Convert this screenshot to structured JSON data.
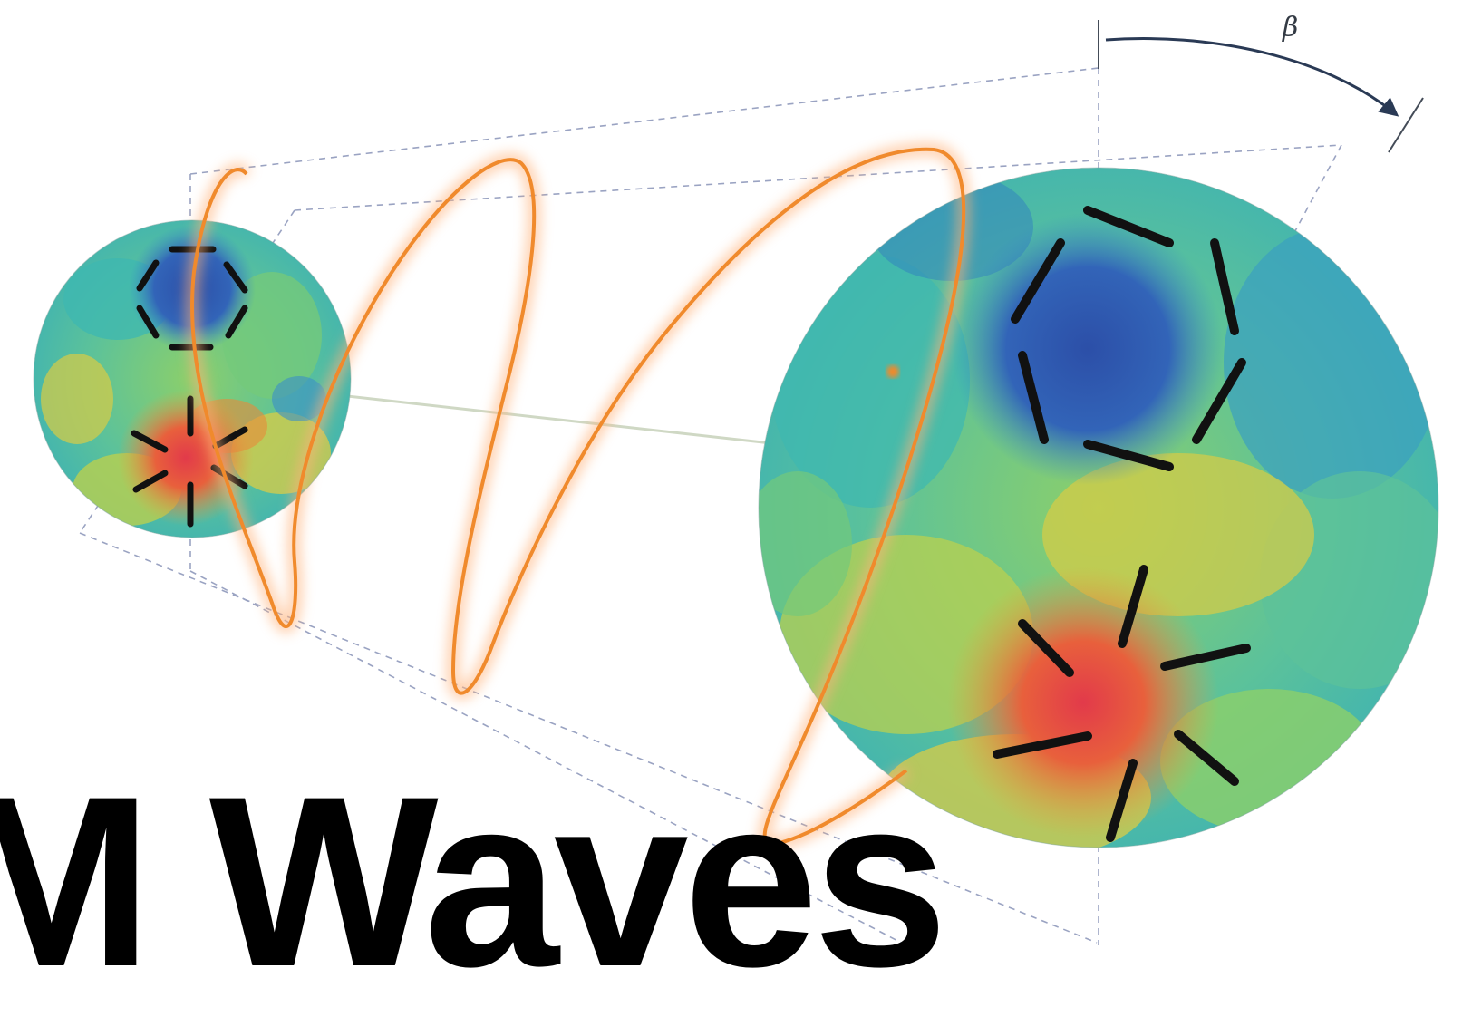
{
  "angle_label": "β",
  "title_text": "M Waves",
  "colors": {
    "wave": "#f08a2c",
    "wave_glow": "#ffb27a",
    "guide_dash": "#9aa3c2",
    "arrow": "#2a3a55",
    "cmb_teal": "#3fb8b0",
    "cmb_green": "#8ccf6a",
    "cmb_blue": "#2f5fb0",
    "cmb_yellow": "#d9cc45",
    "cmb_red": "#e04848",
    "polarization_bar": "#111111"
  }
}
